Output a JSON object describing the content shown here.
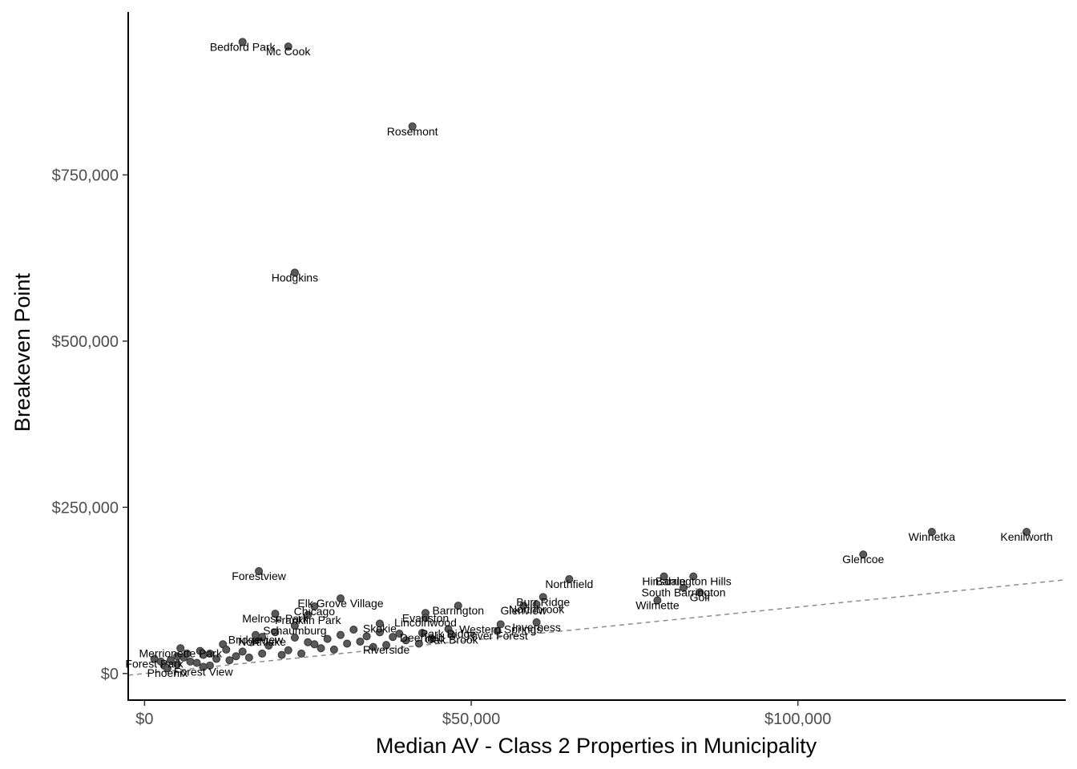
{
  "chart_data": {
    "type": "scatter",
    "title": "",
    "xlabel": "Median AV - Class 2 Properties in Municipality",
    "ylabel": "Breakeven Point",
    "xlim": [
      -2500,
      141000
    ],
    "ylim": [
      -40000,
      995000
    ],
    "x_ticks": [
      0,
      50000,
      100000
    ],
    "x_tick_labels": [
      "$0",
      "$50,000",
      "$100,000"
    ],
    "y_ticks": [
      0,
      250000,
      500000,
      750000
    ],
    "y_tick_labels": [
      "$0",
      "$250,000",
      "$500,000",
      "$750,000"
    ],
    "grid": false,
    "legend": "none",
    "reference_line": {
      "style": "dashed",
      "slope": 1,
      "intercept": 0,
      "color": "#8c8c8c"
    },
    "point_color": "#595959",
    "labeled_points": [
      {
        "label": "Bedford Park",
        "x": 15000,
        "y": 950000
      },
      {
        "label": "Mc Cook",
        "x": 22000,
        "y": 943000
      },
      {
        "label": "Rosemont",
        "x": 41000,
        "y": 823000
      },
      {
        "label": "Hodgkins",
        "x": 23000,
        "y": 603000
      },
      {
        "label": "Kenilworth",
        "x": 135000,
        "y": 213000
      },
      {
        "label": "Winnetka",
        "x": 120500,
        "y": 213000
      },
      {
        "label": "Glencoe",
        "x": 110000,
        "y": 179000
      },
      {
        "label": "Forestview",
        "x": 17500,
        "y": 154000
      },
      {
        "label": "Northfield",
        "x": 65000,
        "y": 142000
      },
      {
        "label": "Hinsdale",
        "x": 79500,
        "y": 146000
      },
      {
        "label": "Barrington Hills",
        "x": 84000,
        "y": 146000
      },
      {
        "label": "South Barrington",
        "x": 82500,
        "y": 129000
      },
      {
        "label": "Golf",
        "x": 85000,
        "y": 122000
      },
      {
        "label": "Wilmette",
        "x": 78500,
        "y": 110000
      },
      {
        "label": "Elk Grove Village",
        "x": 30000,
        "y": 113000
      },
      {
        "label": "Burr Ridge",
        "x": 61000,
        "y": 115000
      },
      {
        "label": "Glenview",
        "x": 58000,
        "y": 102000
      },
      {
        "label": "Northbrook",
        "x": 60000,
        "y": 104000
      },
      {
        "label": "Barrington",
        "x": 48000,
        "y": 102000
      },
      {
        "label": "Chicago",
        "x": 26000,
        "y": 101000
      },
      {
        "label": "Melrose Park",
        "x": 20000,
        "y": 90000
      },
      {
        "label": "Franklin Park",
        "x": 25000,
        "y": 88000
      },
      {
        "label": "Evanston",
        "x": 43000,
        "y": 91000
      },
      {
        "label": "Lincolnwood",
        "x": 43000,
        "y": 84000
      },
      {
        "label": "Inverness",
        "x": 60000,
        "y": 77000
      },
      {
        "label": "Western Springs",
        "x": 54500,
        "y": 74000
      },
      {
        "label": "Skokie",
        "x": 36000,
        "y": 75000
      },
      {
        "label": "Park Ridge",
        "x": 46500,
        "y": 67000
      },
      {
        "label": "River Forest",
        "x": 54000,
        "y": 64000
      },
      {
        "label": "Deerfield",
        "x": 42500,
        "y": 61000
      },
      {
        "label": "Oak Brook",
        "x": 47000,
        "y": 58000
      },
      {
        "label": "Schaumburg",
        "x": 23000,
        "y": 72000
      },
      {
        "label": "Bridgeview",
        "x": 17000,
        "y": 58000
      },
      {
        "label": "Northlake",
        "x": 18000,
        "y": 55000
      },
      {
        "label": "Riverside",
        "x": 37000,
        "y": 43000
      },
      {
        "label": "Merrionette Park",
        "x": 5500,
        "y": 38000
      },
      {
        "label": "Forest Park",
        "x": 1500,
        "y": 22000
      },
      {
        "label": "Phoenix",
        "x": 3500,
        "y": 8000
      },
      {
        "label": "Forest View",
        "x": 9000,
        "y": 10000
      }
    ],
    "unlabeled_points": [
      {
        "x": 12000,
        "y": 44000
      },
      {
        "x": 20000,
        "y": 62000
      },
      {
        "x": 25000,
        "y": 47000
      },
      {
        "x": 28000,
        "y": 52000
      },
      {
        "x": 30000,
        "y": 58000
      },
      {
        "x": 32000,
        "y": 66000
      },
      {
        "x": 33000,
        "y": 48000
      },
      {
        "x": 38000,
        "y": 55000
      },
      {
        "x": 40000,
        "y": 50000
      },
      {
        "x": 44000,
        "y": 52000
      },
      {
        "x": 35000,
        "y": 40000
      },
      {
        "x": 27000,
        "y": 38000
      },
      {
        "x": 22000,
        "y": 35000
      },
      {
        "x": 18000,
        "y": 30000
      },
      {
        "x": 15000,
        "y": 33000
      },
      {
        "x": 14000,
        "y": 26000
      },
      {
        "x": 11000,
        "y": 22000
      },
      {
        "x": 9000,
        "y": 28000
      },
      {
        "x": 7000,
        "y": 18000
      },
      {
        "x": 6000,
        "y": 24000
      },
      {
        "x": 5000,
        "y": 14000
      },
      {
        "x": 4000,
        "y": 20000
      },
      {
        "x": 3000,
        "y": 12000
      },
      {
        "x": 8000,
        "y": 16000
      },
      {
        "x": 10000,
        "y": 30000
      },
      {
        "x": 13000,
        "y": 20000
      },
      {
        "x": 16000,
        "y": 24000
      },
      {
        "x": 19000,
        "y": 42000
      },
      {
        "x": 21000,
        "y": 28000
      },
      {
        "x": 24000,
        "y": 30000
      },
      {
        "x": 26000,
        "y": 44000
      },
      {
        "x": 29000,
        "y": 36000
      },
      {
        "x": 31000,
        "y": 45000
      },
      {
        "x": 34000,
        "y": 56000
      },
      {
        "x": 36000,
        "y": 62000
      },
      {
        "x": 39000,
        "y": 60000
      },
      {
        "x": 42000,
        "y": 45000
      },
      {
        "x": 17000,
        "y": 50000
      },
      {
        "x": 23000,
        "y": 54000
      },
      {
        "x": 12500,
        "y": 36000
      },
      {
        "x": 8500,
        "y": 34000
      },
      {
        "x": 6500,
        "y": 30000
      },
      {
        "x": 2500,
        "y": 18000
      },
      {
        "x": 5000,
        "y": 26000
      },
      {
        "x": 10000,
        "y": 12000
      }
    ]
  }
}
